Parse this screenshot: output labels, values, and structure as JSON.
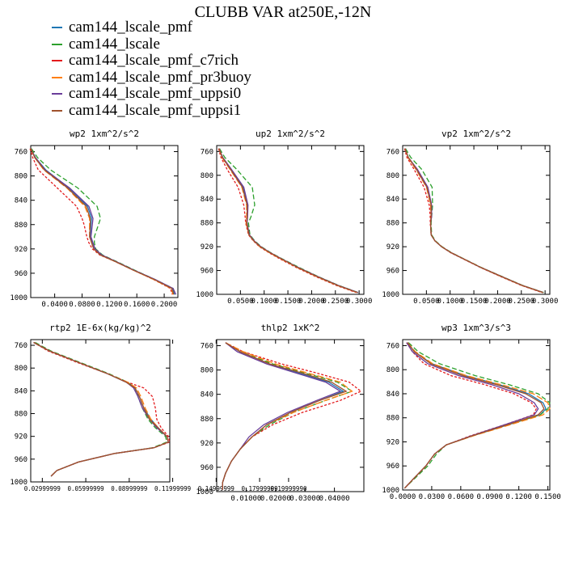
{
  "title": "CLUBB VAR at250E,-12N",
  "legend": [
    {
      "name": "cam144_lscale_pmf",
      "color": "#1f77b4"
    },
    {
      "name": "cam144_lscale",
      "color": "#2ca02c"
    },
    {
      "name": "cam144_lscale_pmf_c7rich",
      "color": "#e31a1c"
    },
    {
      "name": "cam144_lscale_pmf_pr3buoy",
      "color": "#ff7f0e"
    },
    {
      "name": "cam144_lscale_pmf_uppsi0",
      "color": "#6a3d9a"
    },
    {
      "name": "cam144_lscale_pmf_uppsi1",
      "color": "#a0522d"
    }
  ],
  "chart_data": [
    {
      "type": "line",
      "title": "wp2  1xm^2/s^2",
      "ylim": [
        1000,
        750
      ],
      "yticks": [
        "760",
        "800",
        "840",
        "880",
        "920",
        "960",
        "1000"
      ],
      "xlim": [
        0.005,
        0.22
      ],
      "xticks": [
        "0.0400",
        "0.0800",
        "0.1200",
        "0.1600",
        "0.2000"
      ],
      "pressure": [
        755,
        770,
        790,
        820,
        850,
        870,
        880,
        900,
        910,
        920,
        930,
        940,
        955,
        970,
        985,
        995
      ],
      "series": [
        {
          "name": "cam144_lscale_pmf",
          "values": [
            0.005,
            0.012,
            0.027,
            0.061,
            0.088,
            0.094,
            0.093,
            0.092,
            0.095,
            0.098,
            0.108,
            0.128,
            0.156,
            0.186,
            0.212,
            0.215
          ]
        },
        {
          "name": "cam144_lscale",
          "values": [
            0.006,
            0.015,
            0.034,
            0.074,
            0.102,
            0.107,
            0.104,
            0.098,
            0.098,
            0.1,
            0.11,
            0.129,
            0.157,
            0.186,
            0.213,
            0.216
          ]
        },
        {
          "name": "cam144_lscale_pmf_c7rich",
          "values": [
            0.004,
            0.008,
            0.016,
            0.044,
            0.072,
            0.08,
            0.083,
            0.087,
            0.09,
            0.095,
            0.106,
            0.127,
            0.155,
            0.184,
            0.209,
            0.212
          ]
        },
        {
          "name": "cam144_lscale_pmf_pr3buoy",
          "values": [
            0.005,
            0.011,
            0.024,
            0.058,
            0.084,
            0.091,
            0.091,
            0.091,
            0.094,
            0.097,
            0.107,
            0.127,
            0.155,
            0.184,
            0.21,
            0.213
          ]
        },
        {
          "name": "cam144_lscale_pmf_uppsi0",
          "values": [
            0.005,
            0.012,
            0.026,
            0.062,
            0.09,
            0.096,
            0.095,
            0.093,
            0.096,
            0.099,
            0.109,
            0.128,
            0.156,
            0.186,
            0.213,
            0.217
          ]
        },
        {
          "name": "cam144_lscale_pmf_uppsi1",
          "values": [
            0.005,
            0.011,
            0.025,
            0.059,
            0.086,
            0.092,
            0.092,
            0.091,
            0.094,
            0.097,
            0.107,
            0.127,
            0.155,
            0.185,
            0.211,
            0.214
          ]
        }
      ]
    },
    {
      "type": "line",
      "title": "up2  1xm^2/s^2",
      "ylim": [
        1000,
        750
      ],
      "yticks": [
        "760",
        "800",
        "840",
        "880",
        "920",
        "960",
        "1000"
      ],
      "xlim": [
        0.0,
        0.31
      ],
      "xticks": [
        "0.0500",
        "0.1000",
        "0.1500",
        "0.2000",
        "0.2500",
        "0.3000"
      ],
      "pressure": [
        755,
        770,
        790,
        820,
        850,
        870,
        880,
        900,
        910,
        920,
        930,
        940,
        955,
        970,
        985,
        997
      ],
      "series": [
        {
          "name": "cam144_lscale_pmf",
          "values": [
            0.005,
            0.012,
            0.03,
            0.055,
            0.065,
            0.064,
            0.063,
            0.068,
            0.078,
            0.092,
            0.112,
            0.135,
            0.172,
            0.212,
            0.256,
            0.298
          ]
        },
        {
          "name": "cam144_lscale",
          "values": [
            0.006,
            0.017,
            0.042,
            0.075,
            0.08,
            0.072,
            0.067,
            0.07,
            0.08,
            0.094,
            0.114,
            0.137,
            0.174,
            0.213,
            0.257,
            0.298
          ]
        },
        {
          "name": "cam144_lscale_pmf_c7rich",
          "values": [
            0.004,
            0.009,
            0.022,
            0.045,
            0.057,
            0.06,
            0.061,
            0.067,
            0.077,
            0.09,
            0.11,
            0.132,
            0.168,
            0.208,
            0.252,
            0.294
          ]
        },
        {
          "name": "cam144_lscale_pmf_pr3buoy",
          "values": [
            0.005,
            0.011,
            0.028,
            0.053,
            0.063,
            0.063,
            0.062,
            0.068,
            0.078,
            0.091,
            0.111,
            0.134,
            0.17,
            0.21,
            0.254,
            0.296
          ]
        },
        {
          "name": "cam144_lscale_pmf_uppsi0",
          "values": [
            0.005,
            0.013,
            0.031,
            0.057,
            0.066,
            0.065,
            0.064,
            0.069,
            0.079,
            0.093,
            0.113,
            0.136,
            0.172,
            0.212,
            0.256,
            0.298
          ]
        },
        {
          "name": "cam144_lscale_pmf_uppsi1",
          "values": [
            0.005,
            0.012,
            0.029,
            0.054,
            0.064,
            0.064,
            0.063,
            0.068,
            0.078,
            0.092,
            0.112,
            0.135,
            0.171,
            0.211,
            0.255,
            0.297
          ]
        }
      ]
    },
    {
      "type": "line",
      "title": "vp2  1xm^2/s^2",
      "ylim": [
        1000,
        750
      ],
      "yticks": [
        "760",
        "800",
        "840",
        "880",
        "920",
        "960",
        "1000"
      ],
      "xlim": [
        0.0,
        0.31
      ],
      "xticks": [
        "0.0500",
        "0.1000",
        "0.1500",
        "0.2000",
        "0.2500",
        "0.3000"
      ],
      "pressure": [
        755,
        770,
        790,
        820,
        850,
        870,
        880,
        900,
        910,
        920,
        930,
        940,
        955,
        970,
        985,
        997
      ],
      "series": [
        {
          "name": "cam144_lscale_pmf",
          "values": [
            0.005,
            0.012,
            0.03,
            0.052,
            0.06,
            0.06,
            0.059,
            0.06,
            0.068,
            0.082,
            0.102,
            0.127,
            0.165,
            0.208,
            0.252,
            0.296
          ]
        },
        {
          "name": "cam144_lscale",
          "values": [
            0.006,
            0.017,
            0.04,
            0.062,
            0.063,
            0.061,
            0.06,
            0.061,
            0.069,
            0.083,
            0.103,
            0.128,
            0.166,
            0.209,
            0.253,
            0.297
          ]
        },
        {
          "name": "cam144_lscale_pmf_c7rich",
          "values": [
            0.004,
            0.009,
            0.024,
            0.045,
            0.056,
            0.058,
            0.058,
            0.06,
            0.068,
            0.082,
            0.101,
            0.126,
            0.164,
            0.206,
            0.25,
            0.294
          ]
        },
        {
          "name": "cam144_lscale_pmf_pr3buoy",
          "values": [
            0.005,
            0.011,
            0.028,
            0.05,
            0.059,
            0.06,
            0.059,
            0.06,
            0.068,
            0.082,
            0.102,
            0.127,
            0.165,
            0.207,
            0.251,
            0.295
          ]
        },
        {
          "name": "cam144_lscale_pmf_uppsi0",
          "values": [
            0.005,
            0.012,
            0.031,
            0.053,
            0.061,
            0.061,
            0.059,
            0.06,
            0.068,
            0.082,
            0.102,
            0.127,
            0.165,
            0.208,
            0.252,
            0.296
          ]
        },
        {
          "name": "cam144_lscale_pmf_uppsi1",
          "values": [
            0.005,
            0.012,
            0.029,
            0.051,
            0.06,
            0.06,
            0.059,
            0.06,
            0.068,
            0.082,
            0.102,
            0.127,
            0.165,
            0.208,
            0.252,
            0.296
          ]
        }
      ]
    },
    {
      "type": "line",
      "title": "rtp2  1E-6x(kg/kg)^2",
      "ylim": [
        1000,
        750
      ],
      "yticks": [
        "760",
        "800",
        "840",
        "880",
        "920",
        "960",
        "1000"
      ],
      "xlim": [
        0.022,
        0.118
      ],
      "xticks": [
        "0.02999999",
        "0.05999999",
        "0.08999999",
        "0.11999999",
        "0.14999999",
        "0.17999999",
        "0.19999990"
      ],
      "pressure": [
        755,
        770,
        790,
        810,
        825,
        835,
        850,
        870,
        890,
        905,
        920,
        930,
        940,
        950,
        965,
        980,
        990
      ],
      "series": [
        {
          "name": "cam144_lscale_pmf",
          "values": [
            0.024,
            0.035,
            0.055,
            0.075,
            0.088,
            0.094,
            0.097,
            0.1,
            0.105,
            0.11,
            0.116,
            0.117,
            0.107,
            0.08,
            0.055,
            0.04,
            0.036
          ]
        },
        {
          "name": "cam144_lscale",
          "values": [
            0.025,
            0.036,
            0.056,
            0.076,
            0.089,
            0.094,
            0.096,
            0.099,
            0.103,
            0.108,
            0.115,
            0.116,
            0.106,
            0.08,
            0.055,
            0.04,
            0.036
          ]
        },
        {
          "name": "cam144_lscale_pmf_c7rich",
          "values": [
            0.024,
            0.034,
            0.054,
            0.075,
            0.089,
            0.1,
            0.106,
            0.108,
            0.109,
            0.112,
            0.117,
            0.118,
            0.107,
            0.08,
            0.055,
            0.04,
            0.036
          ]
        },
        {
          "name": "cam144_lscale_pmf_pr3buoy",
          "values": [
            0.024,
            0.035,
            0.055,
            0.075,
            0.089,
            0.095,
            0.098,
            0.101,
            0.105,
            0.11,
            0.116,
            0.117,
            0.107,
            0.08,
            0.055,
            0.04,
            0.036
          ]
        },
        {
          "name": "cam144_lscale_pmf_uppsi0",
          "values": [
            0.024,
            0.035,
            0.055,
            0.075,
            0.088,
            0.093,
            0.096,
            0.099,
            0.104,
            0.109,
            0.116,
            0.117,
            0.107,
            0.08,
            0.055,
            0.04,
            0.036
          ]
        },
        {
          "name": "cam144_lscale_pmf_uppsi1",
          "values": [
            0.024,
            0.035,
            0.055,
            0.075,
            0.088,
            0.094,
            0.097,
            0.1,
            0.104,
            0.11,
            0.116,
            0.117,
            0.107,
            0.08,
            0.055,
            0.04,
            0.036
          ]
        }
      ]
    },
    {
      "type": "line",
      "title": "thlp2  1xK^2",
      "ylim": [
        1000,
        750
      ],
      "yticks": [
        "760",
        "800",
        "840",
        "880",
        "920",
        "960",
        "1000"
      ],
      "xlim": [
        0.0,
        0.05
      ],
      "xticks": [
        "0.01000",
        "0.02000",
        "0.03000",
        "0.04000"
      ],
      "pressure": [
        755,
        770,
        790,
        805,
        820,
        835,
        850,
        870,
        890,
        910,
        930,
        950,
        970,
        985,
        997
      ],
      "series": [
        {
          "name": "cam144_lscale_pmf",
          "values": [
            0.003,
            0.008,
            0.018,
            0.028,
            0.038,
            0.043,
            0.035,
            0.025,
            0.017,
            0.012,
            0.008,
            0.005,
            0.003,
            0.002,
            0.002
          ]
        },
        {
          "name": "cam144_lscale",
          "values": [
            0.003,
            0.008,
            0.019,
            0.03,
            0.041,
            0.046,
            0.037,
            0.026,
            0.018,
            0.012,
            0.008,
            0.005,
            0.003,
            0.002,
            0.002
          ]
        },
        {
          "name": "cam144_lscale_pmf_c7rich",
          "values": [
            0.003,
            0.009,
            0.022,
            0.034,
            0.045,
            0.049,
            0.042,
            0.029,
            0.019,
            0.012,
            0.008,
            0.005,
            0.003,
            0.002,
            0.002
          ]
        },
        {
          "name": "cam144_lscale_pmf_pr3buoy",
          "values": [
            0.003,
            0.009,
            0.02,
            0.031,
            0.042,
            0.046,
            0.037,
            0.026,
            0.017,
            0.012,
            0.008,
            0.005,
            0.003,
            0.002,
            0.002
          ]
        },
        {
          "name": "cam144_lscale_pmf_uppsi0",
          "values": [
            0.003,
            0.007,
            0.017,
            0.027,
            0.037,
            0.042,
            0.034,
            0.024,
            0.016,
            0.011,
            0.008,
            0.005,
            0.003,
            0.002,
            0.002
          ]
        },
        {
          "name": "cam144_lscale_pmf_uppsi1",
          "values": [
            0.003,
            0.008,
            0.018,
            0.029,
            0.039,
            0.044,
            0.035,
            0.025,
            0.017,
            0.012,
            0.008,
            0.005,
            0.003,
            0.002,
            0.002
          ]
        }
      ]
    },
    {
      "type": "line",
      "title": "wp3  1xm^3/s^3",
      "ylim": [
        1000,
        750
      ],
      "yticks": [
        "760",
        "800",
        "840",
        "880",
        "920",
        "960",
        "1000"
      ],
      "xlim": [
        0.0,
        0.152
      ],
      "xticks": [
        "0.0000",
        "0.0300",
        "0.0600",
        "0.0900",
        "0.1200",
        "0.1500"
      ],
      "pressure": [
        755,
        770,
        790,
        810,
        825,
        840,
        855,
        865,
        875,
        890,
        910,
        925,
        940,
        960,
        980,
        997
      ],
      "series": [
        {
          "name": "cam144_lscale_pmf",
          "values": [
            0.005,
            0.012,
            0.03,
            0.065,
            0.1,
            0.13,
            0.145,
            0.148,
            0.142,
            0.112,
            0.072,
            0.045,
            0.033,
            0.024,
            0.012,
            0.002
          ]
        },
        {
          "name": "cam144_lscale",
          "values": [
            0.006,
            0.016,
            0.038,
            0.075,
            0.11,
            0.14,
            0.152,
            0.15,
            0.142,
            0.112,
            0.072,
            0.045,
            0.035,
            0.026,
            0.013,
            0.002
          ]
        },
        {
          "name": "cam144_lscale_pmf_c7rich",
          "values": [
            0.004,
            0.01,
            0.022,
            0.05,
            0.085,
            0.115,
            0.133,
            0.138,
            0.135,
            0.108,
            0.07,
            0.045,
            0.033,
            0.024,
            0.012,
            0.002
          ]
        },
        {
          "name": "cam144_lscale_pmf_pr3buoy",
          "values": [
            0.005,
            0.013,
            0.031,
            0.066,
            0.102,
            0.135,
            0.15,
            0.152,
            0.145,
            0.114,
            0.073,
            0.045,
            0.033,
            0.024,
            0.012,
            0.002
          ]
        },
        {
          "name": "cam144_lscale_pmf_uppsi0",
          "values": [
            0.004,
            0.01,
            0.026,
            0.058,
            0.092,
            0.12,
            0.136,
            0.14,
            0.136,
            0.108,
            0.071,
            0.045,
            0.033,
            0.024,
            0.012,
            0.002
          ]
        },
        {
          "name": "cam144_lscale_pmf_uppsi1",
          "values": [
            0.005,
            0.012,
            0.029,
            0.062,
            0.097,
            0.127,
            0.143,
            0.146,
            0.14,
            0.111,
            0.072,
            0.045,
            0.033,
            0.024,
            0.012,
            0.002
          ]
        }
      ]
    }
  ]
}
